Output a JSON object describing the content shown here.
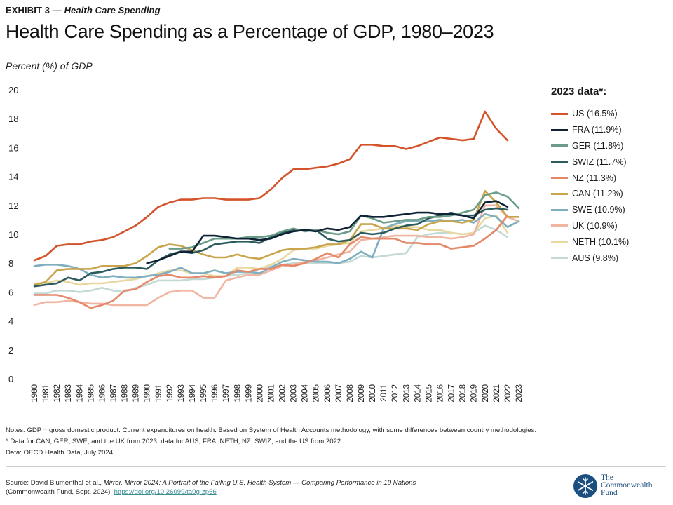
{
  "header": {
    "exhibit_label": "EXHIBIT 3 —",
    "exhibit_subtitle": "Health Care Spending",
    "title": "Health Care Spending as a Percentage of GDP, 1980–2023",
    "ylabel": "Percent (%) of GDP"
  },
  "legend": {
    "title": "2023 data*:"
  },
  "notes": {
    "line1": "Notes: GDP = gross domestic product. Current expenditures on health. Based on System of Health Accounts methodology, with some differences between country methodologies.",
    "line2": "* Data for CAN, GER, SWE, and the UK from 2023; data for AUS, FRA, NETH, NZ, SWIZ, and the US from 2022.",
    "line3": "Data: OECD Health Data, July 2024."
  },
  "source": {
    "prefix": "Source: David Blumenthal et al.,",
    "italic": "Mirror, Mirror 2024: A Portrait of the Failing U.S. Health System — Comparing Performance in 10 Nations",
    "line2_prefix": "(Commonwealth Fund, Sept. 2024).",
    "doi": "https://doi.org/10.26099/ta0g-zp66"
  },
  "logo": {
    "line1": "The",
    "line2": "Commonwealth",
    "line3": "Fund"
  },
  "chart_data": {
    "type": "line",
    "ylim": [
      0,
      20
    ],
    "yticks": [
      0,
      2,
      4,
      6,
      8,
      10,
      12,
      14,
      16,
      18,
      20
    ],
    "grid": false,
    "legend_position": "right",
    "x": [
      1980,
      1981,
      1982,
      1983,
      1984,
      1985,
      1986,
      1987,
      1988,
      1989,
      1990,
      1991,
      1992,
      1993,
      1994,
      1995,
      1996,
      1997,
      1998,
      1999,
      2000,
      2001,
      2002,
      2003,
      2004,
      2005,
      2006,
      2007,
      2008,
      2009,
      2010,
      2011,
      2012,
      2013,
      2014,
      2015,
      2016,
      2017,
      2018,
      2019,
      2020,
      2021,
      2022,
      2023
    ],
    "series": [
      {
        "name": "US (16.5%)",
        "color": "#d4532b",
        "values": [
          8.2,
          8.5,
          9.2,
          9.3,
          9.3,
          9.5,
          9.6,
          9.8,
          10.2,
          10.6,
          11.2,
          11.9,
          12.2,
          12.4,
          12.4,
          12.5,
          12.5,
          12.4,
          12.4,
          12.4,
          12.5,
          13.1,
          13.9,
          14.5,
          14.5,
          14.6,
          14.7,
          14.9,
          15.2,
          16.2,
          16.2,
          16.1,
          16.1,
          15.9,
          16.1,
          16.4,
          16.7,
          16.6,
          16.5,
          16.6,
          18.5,
          17.3,
          16.5,
          null
        ]
      },
      {
        "name": "FRA (11.9%)",
        "color": "#0f2236",
        "values": [
          null,
          null,
          null,
          null,
          null,
          null,
          null,
          null,
          null,
          null,
          8.0,
          8.2,
          8.5,
          8.8,
          8.8,
          9.9,
          9.9,
          9.8,
          9.7,
          9.7,
          9.6,
          9.7,
          10.0,
          10.2,
          10.3,
          10.2,
          10.4,
          10.3,
          10.5,
          11.3,
          11.2,
          11.2,
          11.3,
          11.4,
          11.5,
          11.5,
          11.4,
          11.4,
          11.3,
          11.1,
          12.2,
          12.3,
          11.9,
          null
        ]
      },
      {
        "name": "GER (11.8%)",
        "color": "#6a9c88",
        "values": [
          null,
          null,
          null,
          null,
          null,
          null,
          null,
          null,
          null,
          null,
          null,
          null,
          9.0,
          9.0,
          9.1,
          9.4,
          9.7,
          9.7,
          9.7,
          9.8,
          9.8,
          9.9,
          10.2,
          10.4,
          10.2,
          10.3,
          10.1,
          10.0,
          10.2,
          11.3,
          11.1,
          10.8,
          10.9,
          11.0,
          11.0,
          11.2,
          11.2,
          11.3,
          11.5,
          11.7,
          12.7,
          12.9,
          12.6,
          11.8
        ]
      },
      {
        "name": "SWIZ (11.7%)",
        "color": "#2d5b5c",
        "values": [
          6.4,
          6.5,
          6.6,
          7.0,
          6.8,
          7.3,
          7.4,
          7.6,
          7.7,
          7.7,
          7.6,
          8.2,
          8.6,
          8.8,
          8.7,
          8.9,
          9.3,
          9.4,
          9.5,
          9.5,
          9.4,
          9.8,
          10.1,
          10.3,
          10.3,
          10.3,
          9.7,
          9.5,
          9.6,
          10.1,
          10.0,
          10.1,
          10.4,
          10.6,
          10.7,
          11.1,
          11.3,
          11.5,
          11.3,
          11.3,
          11.7,
          11.8,
          11.7,
          null
        ]
      },
      {
        "name": "NZ (11.3%)",
        "color": "#e5886a",
        "values": [
          5.8,
          5.8,
          5.8,
          5.6,
          5.3,
          4.9,
          5.1,
          5.4,
          6.1,
          6.2,
          6.7,
          7.1,
          7.2,
          7.0,
          7.0,
          7.1,
          7.0,
          7.1,
          7.5,
          7.4,
          7.6,
          7.6,
          7.9,
          7.8,
          8.0,
          8.3,
          8.7,
          8.4,
          9.3,
          9.8,
          9.7,
          9.7,
          9.7,
          9.4,
          9.4,
          9.3,
          9.3,
          9.0,
          9.1,
          9.2,
          9.7,
          10.3,
          11.3,
          null
        ]
      },
      {
        "name": "CAN (11.2%)",
        "color": "#c8a44b",
        "values": [
          6.5,
          6.7,
          7.5,
          7.6,
          7.6,
          7.6,
          7.8,
          7.8,
          7.8,
          8.0,
          8.5,
          9.1,
          9.3,
          9.2,
          8.9,
          8.6,
          8.4,
          8.4,
          8.6,
          8.4,
          8.3,
          8.6,
          8.9,
          9.0,
          9.0,
          9.1,
          9.3,
          9.3,
          9.6,
          10.7,
          10.7,
          10.4,
          10.4,
          10.4,
          10.3,
          10.7,
          10.9,
          10.9,
          10.8,
          11.0,
          13.0,
          12.2,
          11.2,
          11.2
        ]
      },
      {
        "name": "SWE (10.9%)",
        "color": "#7eaec0",
        "values": [
          7.8,
          7.9,
          7.9,
          7.8,
          7.6,
          7.2,
          7.0,
          7.1,
          7.0,
          7.0,
          7.1,
          7.2,
          7.4,
          7.7,
          7.3,
          7.3,
          7.5,
          7.3,
          7.4,
          7.4,
          7.3,
          7.7,
          8.1,
          8.3,
          8.2,
          8.1,
          8.1,
          8.0,
          8.3,
          8.8,
          8.4,
          10.4,
          10.7,
          10.9,
          10.9,
          10.9,
          11.0,
          10.9,
          11.0,
          10.8,
          11.4,
          11.2,
          10.5,
          10.9
        ]
      },
      {
        "name": "UK (10.9%)",
        "color": "#f0b6a1",
        "values": [
          5.1,
          5.3,
          5.3,
          5.4,
          5.3,
          5.2,
          5.2,
          5.1,
          5.1,
          5.1,
          5.1,
          5.6,
          6.0,
          6.1,
          6.1,
          5.6,
          5.6,
          6.8,
          7.0,
          7.2,
          7.2,
          7.5,
          7.8,
          7.9,
          8.1,
          8.2,
          8.4,
          8.6,
          8.8,
          9.6,
          9.7,
          9.8,
          9.9,
          9.9,
          9.9,
          9.8,
          9.8,
          9.7,
          9.8,
          10.0,
          12.0,
          12.0,
          11.2,
          10.9
        ]
      },
      {
        "name": "NETH (10.1%)",
        "color": "#e8d8a0",
        "values": [
          6.6,
          6.6,
          6.8,
          6.7,
          6.5,
          6.6,
          6.6,
          6.7,
          6.8,
          6.9,
          7.1,
          7.3,
          7.5,
          7.5,
          7.3,
          7.3,
          7.1,
          7.1,
          7.7,
          7.7,
          7.6,
          7.9,
          8.3,
          8.9,
          9.0,
          9.0,
          9.2,
          9.3,
          9.4,
          10.2,
          10.3,
          10.4,
          10.6,
          10.5,
          10.5,
          10.3,
          10.3,
          10.1,
          10.0,
          10.1,
          11.1,
          11.3,
          10.1,
          null
        ]
      },
      {
        "name": "AUS (9.8%)",
        "color": "#c2d9d6",
        "values": [
          5.9,
          5.9,
          6.1,
          6.1,
          6.0,
          6.1,
          6.3,
          6.1,
          6.0,
          6.3,
          6.5,
          6.8,
          6.8,
          6.8,
          6.9,
          6.9,
          7.0,
          7.1,
          7.2,
          7.3,
          7.6,
          7.8,
          7.9,
          8.0,
          8.0,
          8.0,
          8.0,
          8.0,
          8.1,
          8.5,
          8.4,
          8.5,
          8.6,
          8.7,
          9.8,
          10.0,
          10.1,
          10.1,
          10.0,
          10.1,
          10.6,
          10.3,
          9.8,
          null
        ]
      }
    ]
  }
}
